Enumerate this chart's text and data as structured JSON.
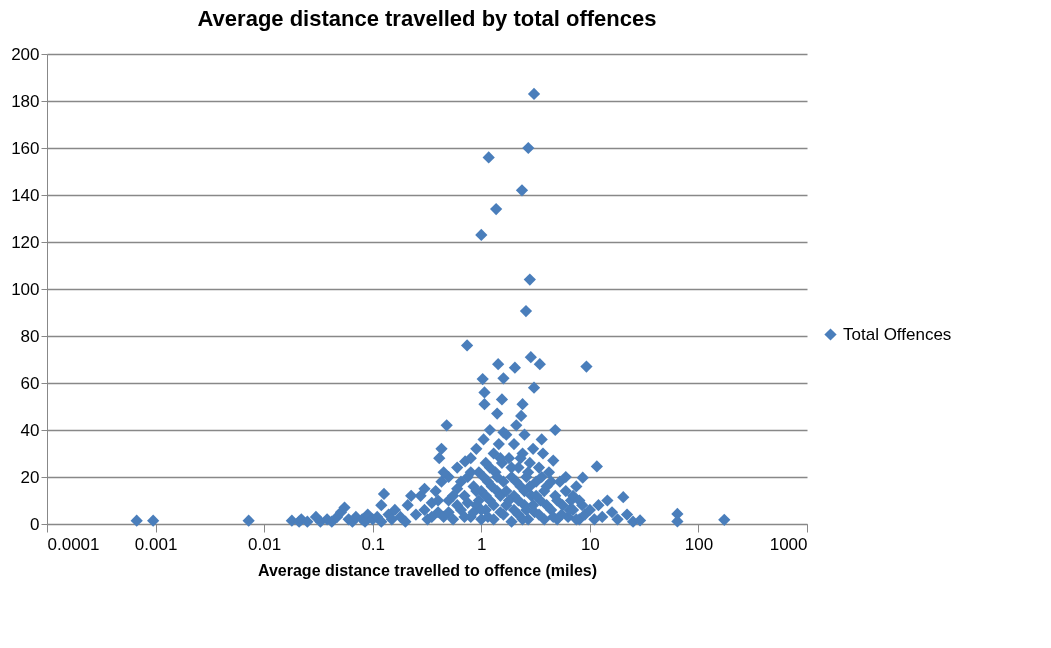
{
  "chart_data": {
    "type": "scatter",
    "title": "Average distance travelled by total offences",
    "xlabel": "Average distance travelled to offence (miles)",
    "log": "x",
    "grid": "y",
    "legend": "right",
    "marker": "diamond",
    "xlim": [
      0.0001,
      1000
    ],
    "xticks": [
      0.0001,
      0.001,
      0.01,
      0.1,
      1,
      10,
      100,
      1000
    ],
    "ylim": [
      0,
      200
    ],
    "yticks": [
      0,
      20,
      40,
      60,
      80,
      100,
      120,
      140,
      160,
      180,
      200
    ],
    "series": [
      {
        "name": "Total Offences",
        "color": "#4a7ebb",
        "x": [
          0.00067,
          0.00095,
          0.0072,
          0.018,
          0.021,
          0.022,
          0.025,
          0.03,
          0.033,
          0.038,
          0.042,
          0.047,
          0.051,
          0.055,
          0.06,
          0.065,
          0.07,
          0.08,
          0.085,
          0.09,
          0.1,
          0.11,
          0.12,
          0.12,
          0.127,
          0.14,
          0.15,
          0.16,
          0.18,
          0.2,
          0.21,
          0.226,
          0.25,
          0.276,
          0.3,
          0.32,
          0.35,
          0.38,
          0.4,
          0.41,
          0.43,
          0.43,
          0.45,
          0.48,
          0.5,
          0.5,
          0.55,
          0.6,
          0.6,
          0.65,
          0.7,
          0.71,
          0.74,
          0.75,
          0.8,
          0.8,
          0.85,
          0.9,
          0.9,
          0.95,
          1.0,
          1.0,
          1.0,
          1.03,
          1.05,
          1.07,
          1.07,
          1.1,
          1.1,
          1.15,
          1.17,
          1.2,
          1.2,
          1.3,
          1.3,
          1.35,
          1.37,
          1.4,
          1.4,
          1.43,
          1.45,
          1.5,
          1.55,
          1.55,
          1.6,
          1.6,
          1.6,
          1.7,
          1.7,
          1.8,
          1.9,
          1.9,
          2.0,
          2.0,
          2.04,
          2.1,
          2.2,
          2.2,
          2.3,
          2.33,
          2.37,
          2.4,
          2.4,
          2.5,
          2.5,
          2.58,
          2.6,
          2.7,
          2.71,
          2.8,
          2.8,
          2.86,
          2.9,
          3.0,
          3.06,
          3.06,
          3.1,
          3.2,
          3.4,
          3.46,
          3.5,
          3.6,
          3.7,
          3.8,
          4.0,
          4.2,
          4.4,
          4.6,
          4.8,
          4.8,
          5.0,
          5.3,
          5.6,
          6.0,
          6.3,
          6.7,
          7.0,
          7.5,
          8,
          8.5,
          8.6,
          9,
          9.3,
          10,
          11,
          11.6,
          12,
          13,
          14.5,
          16,
          18,
          20.3,
          22,
          25,
          29,
          64,
          64,
          173,
          0.3,
          0.35,
          0.4,
          0.45,
          0.5,
          0.55,
          0.6,
          0.65,
          0.7,
          0.75,
          0.8,
          0.85,
          0.9,
          0.95,
          1.0,
          1.05,
          1.1,
          1.15,
          1.2,
          1.25,
          1.3,
          1.4,
          1.5,
          1.5,
          1.6,
          1.7,
          1.8,
          1.9,
          2.0,
          2.1,
          2.2,
          2.3,
          2.4,
          2.5,
          2.6,
          2.7,
          2.8,
          3.0,
          3.2,
          3.4,
          3.6,
          3.8,
          4.0,
          4.4,
          4.6,
          5.0,
          5.5,
          6.0,
          6.5,
          7.0,
          7.5,
          8
        ],
        "values": [
          1.4,
          1.4,
          1.4,
          1.4,
          1,
          2,
          1,
          3,
          1,
          2,
          1,
          3,
          5,
          7,
          2,
          1,
          3,
          2,
          1,
          4,
          2,
          3,
          1,
          8,
          12.8,
          4,
          2,
          6,
          3,
          1,
          8,
          12,
          4,
          12,
          6,
          2,
          9,
          14,
          5,
          28,
          32,
          18,
          3,
          42,
          10,
          20,
          2,
          15,
          24,
          6,
          12,
          26.6,
          76,
          20,
          3,
          28,
          16,
          8,
          32,
          22,
          123,
          2,
          14,
          61.7,
          36,
          56,
          51,
          6,
          26,
          18,
          156,
          40,
          10,
          2,
          30,
          22,
          134,
          14,
          47,
          68,
          34,
          5,
          26,
          53,
          18,
          39,
          62,
          38,
          8,
          28,
          1,
          20,
          12,
          34,
          66.5,
          42,
          24,
          4,
          16,
          46,
          142,
          30,
          51,
          8,
          38,
          90.6,
          20,
          2,
          160,
          26,
          104,
          71,
          12,
          32,
          58,
          183,
          5,
          18,
          24,
          68,
          10,
          36,
          30,
          2,
          16,
          22,
          6,
          27,
          12,
          40,
          2,
          18,
          8,
          14,
          3,
          10,
          6,
          16,
          2,
          8,
          19.7,
          4,
          67,
          6,
          2,
          24.5,
          8,
          3,
          10,
          5,
          2,
          11.4,
          4,
          1,
          1.5,
          4.3,
          1.1,
          1.8,
          15,
          3,
          10,
          22,
          5,
          12,
          8,
          18,
          3,
          9,
          22,
          5,
          14,
          10,
          6,
          20,
          12,
          3,
          24,
          16,
          8,
          20,
          28,
          12,
          4,
          14,
          10,
          24,
          6,
          18,
          10,
          28,
          2,
          14,
          6,
          22,
          16,
          8,
          12,
          4,
          20,
          14,
          8,
          18,
          3,
          10,
          4,
          20,
          6,
          12,
          2,
          10
        ]
      }
    ]
  }
}
